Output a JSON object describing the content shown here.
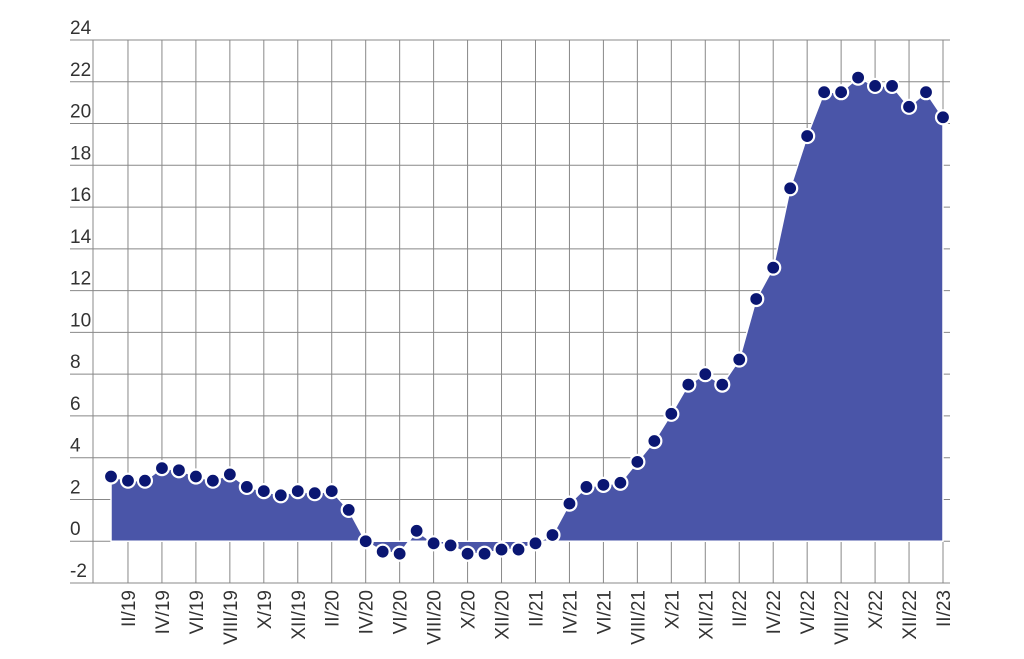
{
  "chart_data": {
    "type": "area",
    "title": "",
    "xlabel": "",
    "ylabel": "",
    "ylim": [
      -2,
      24
    ],
    "yticks": [
      -2,
      0,
      2,
      4,
      6,
      8,
      10,
      12,
      14,
      16,
      18,
      20,
      22,
      24
    ],
    "grid": true,
    "colors": {
      "fill": "#4a55a8",
      "marker": "#0a1672",
      "marker_edge": "#ffffff",
      "grid": "#888888"
    },
    "x": [
      "I/19",
      "II/19",
      "III/19",
      "IV/19",
      "V/19",
      "VI/19",
      "VII/19",
      "VIII/19",
      "IX/19",
      "X/19",
      "XI/19",
      "XII/19",
      "I/20",
      "II/20",
      "III/20",
      "IV/20",
      "V/20",
      "VI/20",
      "VII/20",
      "VIII/20",
      "IX/20",
      "X/20",
      "XI/20",
      "XII/20",
      "I/21",
      "II/21",
      "III/21",
      "IV/21",
      "V/21",
      "VI/21",
      "VII/21",
      "VIII/21",
      "IX/21",
      "X/21",
      "XI/21",
      "XII/21",
      "I/22",
      "II/22",
      "III/22",
      "IV/22",
      "V/22",
      "VI/22",
      "VII/22",
      "VIII/22",
      "IX/22",
      "X/22",
      "XI/22",
      "XII/22",
      "I/23",
      "II/23"
    ],
    "x_tick_labels": [
      "II/19",
      "IV/19",
      "VI/19",
      "VIII/19",
      "X/19",
      "XII/19",
      "II/20",
      "IV/20",
      "VI/20",
      "VIII/20",
      "X/20",
      "XII/20",
      "II/21",
      "IV/21",
      "VI/21",
      "VIII/21",
      "X/21",
      "XII/21",
      "II/22",
      "IV/22",
      "VI/22",
      "VIII/22",
      "X/22",
      "XII/22",
      "II/23"
    ],
    "values": [
      3.1,
      2.9,
      2.9,
      3.5,
      3.4,
      3.1,
      2.9,
      3.2,
      2.6,
      2.4,
      2.2,
      2.4,
      2.3,
      2.4,
      1.5,
      0.0,
      -0.5,
      -0.6,
      0.5,
      -0.1,
      -0.2,
      -0.6,
      -0.6,
      -0.4,
      -0.4,
      -0.1,
      0.3,
      1.8,
      2.6,
      2.7,
      2.8,
      3.8,
      4.8,
      6.1,
      7.5,
      8.0,
      7.5,
      8.7,
      11.6,
      13.1,
      16.9,
      19.4,
      21.5,
      21.5,
      22.2,
      21.8,
      21.8,
      20.8,
      21.5,
      20.3
    ]
  }
}
